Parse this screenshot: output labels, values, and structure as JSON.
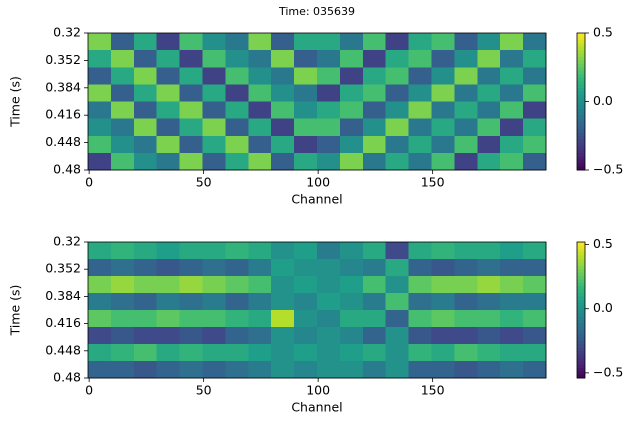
{
  "title": "Time: 035639",
  "chart_data": [
    {
      "type": "heatmap",
      "colormap": "viridis",
      "x_label": "Channel",
      "y_label": "Time (s)",
      "xlim": [
        -0.5,
        199.5
      ],
      "xticks": [
        0,
        50,
        100,
        150
      ],
      "ylim": [
        0.32,
        0.48
      ],
      "invert_y": true,
      "yticks": [
        0.32,
        0.352,
        0.384,
        0.416,
        0.448,
        0.48
      ],
      "zlim": [
        -0.5,
        0.5
      ],
      "colorbar_ticks": [
        0.5,
        {
          "value": 0,
          "label": "0.0"
        },
        {
          "value": -0.5,
          "label": "−0.5"
        }
      ],
      "z": [
        [
          0.3,
          -0.2,
          0.1,
          -0.3,
          0.2,
          0.0,
          -0.1,
          0.3,
          -0.2,
          0.1,
          0.1,
          -0.1,
          0.2,
          -0.3,
          0.1,
          0.2,
          -0.2,
          0.0,
          0.3,
          -0.1
        ],
        [
          0.1,
          0.3,
          -0.2,
          0.1,
          -0.3,
          0.2,
          0.0,
          -0.1,
          0.3,
          -0.2,
          -0.1,
          0.2,
          -0.3,
          0.1,
          0.2,
          -0.2,
          0.0,
          0.3,
          -0.1,
          0.1
        ],
        [
          -0.2,
          0.1,
          0.3,
          -0.2,
          0.1,
          -0.3,
          0.2,
          0.0,
          -0.1,
          0.3,
          0.2,
          -0.3,
          0.1,
          0.2,
          -0.2,
          0.0,
          0.3,
          -0.1,
          0.1,
          -0.1
        ],
        [
          0.3,
          -0.2,
          0.1,
          0.3,
          -0.2,
          0.1,
          -0.3,
          0.2,
          0.0,
          -0.1,
          -0.3,
          0.1,
          0.2,
          -0.2,
          0.0,
          0.3,
          -0.1,
          0.1,
          -0.1,
          0.2
        ],
        [
          -0.1,
          0.3,
          -0.2,
          0.1,
          0.3,
          -0.2,
          0.1,
          -0.3,
          0.2,
          0.0,
          0.1,
          0.2,
          -0.2,
          0.0,
          0.3,
          -0.1,
          0.1,
          -0.1,
          0.2,
          -0.3
        ],
        [
          0.0,
          -0.1,
          0.3,
          -0.2,
          0.1,
          0.3,
          -0.2,
          0.1,
          -0.3,
          0.2,
          0.2,
          -0.2,
          0.0,
          0.3,
          -0.1,
          0.1,
          -0.1,
          0.2,
          -0.3,
          0.1
        ],
        [
          0.2,
          0.0,
          -0.1,
          0.3,
          -0.2,
          0.1,
          0.3,
          -0.2,
          0.1,
          -0.3,
          -0.2,
          0.0,
          0.3,
          -0.1,
          0.1,
          -0.1,
          0.2,
          -0.3,
          0.1,
          0.2
        ],
        [
          -0.3,
          0.2,
          0.0,
          -0.1,
          0.3,
          -0.2,
          0.1,
          0.3,
          -0.2,
          0.1,
          0.0,
          0.3,
          -0.1,
          0.1,
          -0.1,
          0.2,
          -0.3,
          0.1,
          0.2,
          -0.2
        ]
      ]
    },
    {
      "type": "heatmap",
      "colormap": "viridis",
      "x_label": "Channel",
      "y_label": "Time (s)",
      "xlim": [
        -0.5,
        199.5
      ],
      "xticks": [
        0,
        50,
        100,
        150
      ],
      "ylim": [
        0.32,
        0.48
      ],
      "invert_y": true,
      "yticks": [
        0.32,
        0.352,
        0.384,
        0.416,
        0.448,
        0.48
      ],
      "zlim": [
        -0.54,
        0.52
      ],
      "colorbar_ticks": [
        0.5,
        {
          "value": 0,
          "label": "0.0"
        },
        {
          "value": -0.5,
          "label": "−0.5"
        }
      ],
      "z": [
        [
          0.1,
          0.15,
          0.1,
          0.05,
          0.1,
          0.1,
          0.15,
          0.1,
          0.0,
          0.05,
          -0.1,
          0.0,
          0.1,
          -0.3,
          0.1,
          0.15,
          0.1,
          0.1,
          0.05,
          0.1
        ],
        [
          -0.2,
          -0.15,
          -0.2,
          -0.25,
          -0.2,
          -0.15,
          -0.2,
          -0.1,
          0.05,
          0.0,
          0.0,
          -0.05,
          -0.1,
          0.1,
          -0.2,
          -0.25,
          -0.2,
          -0.15,
          -0.2,
          -0.2
        ],
        [
          0.3,
          0.35,
          0.3,
          0.3,
          0.35,
          0.3,
          0.25,
          0.2,
          0.0,
          0.05,
          0.0,
          0.05,
          0.2,
          0.0,
          0.25,
          0.3,
          0.3,
          0.35,
          0.3,
          0.25
        ],
        [
          -0.1,
          -0.15,
          -0.2,
          -0.1,
          -0.15,
          -0.1,
          -0.2,
          -0.1,
          0.0,
          -0.05,
          0.05,
          0.0,
          -0.1,
          0.2,
          -0.15,
          -0.1,
          -0.2,
          -0.15,
          -0.1,
          -0.1
        ],
        [
          0.25,
          0.2,
          0.2,
          0.25,
          0.2,
          0.2,
          0.15,
          0.1,
          0.4,
          0.0,
          -0.05,
          0.1,
          0.1,
          -0.2,
          0.2,
          0.25,
          0.2,
          0.2,
          0.15,
          0.2
        ],
        [
          -0.3,
          -0.25,
          -0.3,
          -0.3,
          -0.25,
          -0.3,
          -0.2,
          -0.15,
          0.0,
          -0.05,
          0.0,
          -0.05,
          -0.2,
          0.0,
          -0.25,
          -0.3,
          -0.3,
          -0.25,
          -0.3,
          -0.25
        ],
        [
          0.1,
          0.15,
          0.2,
          0.1,
          0.15,
          0.1,
          0.1,
          0.05,
          0.0,
          0.05,
          0.0,
          0.05,
          0.1,
          0.0,
          0.15,
          0.1,
          0.2,
          0.15,
          0.1,
          0.1
        ],
        [
          -0.2,
          -0.2,
          -0.25,
          -0.2,
          -0.15,
          -0.2,
          -0.15,
          -0.1,
          0.0,
          -0.05,
          0.0,
          0.0,
          -0.1,
          0.0,
          -0.2,
          -0.2,
          -0.25,
          -0.2,
          -0.15,
          -0.2
        ]
      ]
    }
  ]
}
